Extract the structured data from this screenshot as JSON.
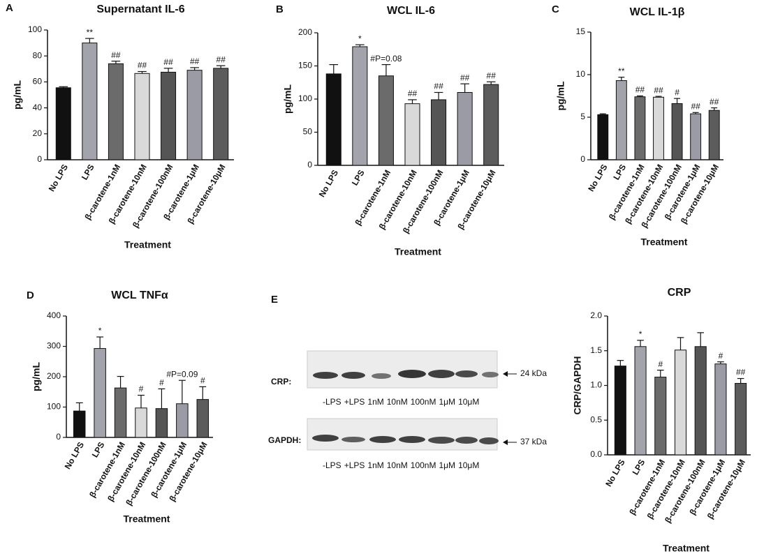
{
  "chart_data": [
    {
      "type": "bar",
      "panel": "A",
      "title": "Supernatant IL-6",
      "y_label": "pg/mL",
      "x_label": "Treatment",
      "categories": [
        "No LPS",
        "LPS",
        "β-carotene-1nM",
        "β-carotene-10nM",
        "β-carotene-100nM",
        "β-carotene-1μM",
        "β-carotene-10μM"
      ],
      "values": [
        55.5,
        90,
        74,
        66.5,
        67.5,
        69,
        70.5
      ],
      "errors": [
        0.8,
        3.5,
        2,
        1.5,
        3,
        2,
        2
      ],
      "colors": [
        "#111111",
        "#a3a3ab",
        "#6b6b6b",
        "#d9d9d9",
        "#555555",
        "#9b9ba5",
        "#5c5c5c"
      ],
      "annotations": [
        {
          "index": 1,
          "text": "**"
        },
        {
          "index": 2,
          "text": "##"
        },
        {
          "index": 3,
          "text": "##"
        },
        {
          "index": 4,
          "text": "##"
        },
        {
          "index": 5,
          "text": "##"
        },
        {
          "index": 6,
          "text": "##"
        }
      ],
      "ylim": [
        0,
        100
      ],
      "yticks": [
        0,
        20,
        40,
        60,
        80,
        100
      ]
    },
    {
      "type": "bar",
      "panel": "B",
      "title": "WCL IL-6",
      "y_label": "pg/mL",
      "x_label": "Treatment",
      "categories": [
        "No LPS",
        "LPS",
        "β-carotene-1nM",
        "β-carotene-10nM",
        "β-carotene-100nM",
        "β-carotene-1μM",
        "β-carotene-10μM"
      ],
      "values": [
        138,
        179,
        135,
        93,
        99,
        110,
        122
      ],
      "errors": [
        14,
        3,
        17,
        6,
        11,
        13,
        4
      ],
      "colors": [
        "#111111",
        "#a3a3ab",
        "#6b6b6b",
        "#d9d9d9",
        "#555555",
        "#9b9ba5",
        "#5c5c5c"
      ],
      "annotations": [
        {
          "index": 1,
          "text": "*"
        },
        {
          "index": 2,
          "text": "#P=0.08"
        },
        {
          "index": 3,
          "text": "##"
        },
        {
          "index": 4,
          "text": "##"
        },
        {
          "index": 5,
          "text": "##"
        },
        {
          "index": 6,
          "text": "##"
        }
      ],
      "ylim": [
        0,
        200
      ],
      "yticks": [
        0,
        50,
        100,
        150,
        200
      ]
    },
    {
      "type": "bar",
      "panel": "C",
      "title": "WCL IL-1β",
      "y_label": "pg/mL",
      "x_label": "Treatment",
      "categories": [
        "No LPS",
        "LPS",
        "β-carotene-1nM",
        "β-carotene-10nM",
        "β-carotene-100nM",
        "β-carotene-1μM",
        "β-carotene-10μM"
      ],
      "values": [
        5.3,
        9.3,
        7.4,
        7.35,
        6.6,
        5.4,
        5.8
      ],
      "errors": [
        0.1,
        0.4,
        0.1,
        0.1,
        0.6,
        0.15,
        0.3
      ],
      "colors": [
        "#111111",
        "#a3a3ab",
        "#6b6b6b",
        "#d9d9d9",
        "#555555",
        "#9b9ba5",
        "#5c5c5c"
      ],
      "annotations": [
        {
          "index": 1,
          "text": "**"
        },
        {
          "index": 2,
          "text": "##"
        },
        {
          "index": 3,
          "text": "##"
        },
        {
          "index": 4,
          "text": "#"
        },
        {
          "index": 5,
          "text": "##"
        },
        {
          "index": 6,
          "text": "##"
        }
      ],
      "ylim": [
        0,
        15
      ],
      "yticks": [
        0,
        5,
        10,
        15
      ]
    },
    {
      "type": "bar",
      "panel": "D",
      "title": "WCL TNFα",
      "y_label": "pg/mL",
      "x_label": "Treatment",
      "categories": [
        "No LPS",
        "LPS",
        "β-carotene-1nM",
        "β-carotene-10nM",
        "β-carotene-100nM",
        "β-carotene-1μM",
        "β-carotene-10μM"
      ],
      "values": [
        87,
        293,
        163,
        97,
        95,
        111,
        125
      ],
      "errors": [
        27,
        38,
        38,
        42,
        65,
        77,
        42
      ],
      "colors": [
        "#111111",
        "#a3a3ab",
        "#6b6b6b",
        "#d9d9d9",
        "#555555",
        "#9b9ba5",
        "#5c5c5c"
      ],
      "annotations": [
        {
          "index": 1,
          "text": "*"
        },
        {
          "index": 3,
          "text": "#"
        },
        {
          "index": 4,
          "text": "#"
        },
        {
          "index": 5,
          "text": "#P=0.09"
        },
        {
          "index": 6,
          "text": "#"
        }
      ],
      "ylim": [
        0,
        400
      ],
      "yticks": [
        0,
        100,
        200,
        300,
        400
      ]
    },
    {
      "type": "bar",
      "title": "CRP",
      "y_label": "CRP/GAPDH",
      "x_label": "Treatment",
      "categories": [
        "No LPS",
        "LPS",
        "β-carotene-1nM",
        "β-carotene-10nM",
        "β-carotene-100nM",
        "β-carotene-1μM",
        "β-carotene-10μM"
      ],
      "values": [
        1.28,
        1.56,
        1.12,
        1.51,
        1.56,
        1.31,
        1.03
      ],
      "errors": [
        0.08,
        0.09,
        0.1,
        0.18,
        0.2,
        0.03,
        0.07
      ],
      "colors": [
        "#111111",
        "#a3a3ab",
        "#6b6b6b",
        "#d9d9d9",
        "#555555",
        "#9b9ba5",
        "#5c5c5c"
      ],
      "annotations": [
        {
          "index": 1,
          "text": "*"
        },
        {
          "index": 2,
          "text": "#"
        },
        {
          "index": 5,
          "text": "#"
        },
        {
          "index": 6,
          "text": "##"
        }
      ],
      "ylim": [
        0,
        2
      ],
      "yticks": [
        {
          "value": 0,
          "label": "0.0"
        },
        0.5,
        {
          "value": 1,
          "label": "1.0"
        },
        1.5,
        {
          "value": 2,
          "label": "2.0"
        }
      ]
    }
  ],
  "blot": {
    "panel": "E",
    "rows": [
      {
        "label": "CRP:",
        "size": "24 kDa"
      },
      {
        "label": "GAPDH:",
        "size": "37 kDa"
      }
    ],
    "lanes": [
      "-LPS",
      "+LPS",
      "1nM",
      "10nM",
      "100nM",
      "1μM",
      "10μM"
    ]
  }
}
